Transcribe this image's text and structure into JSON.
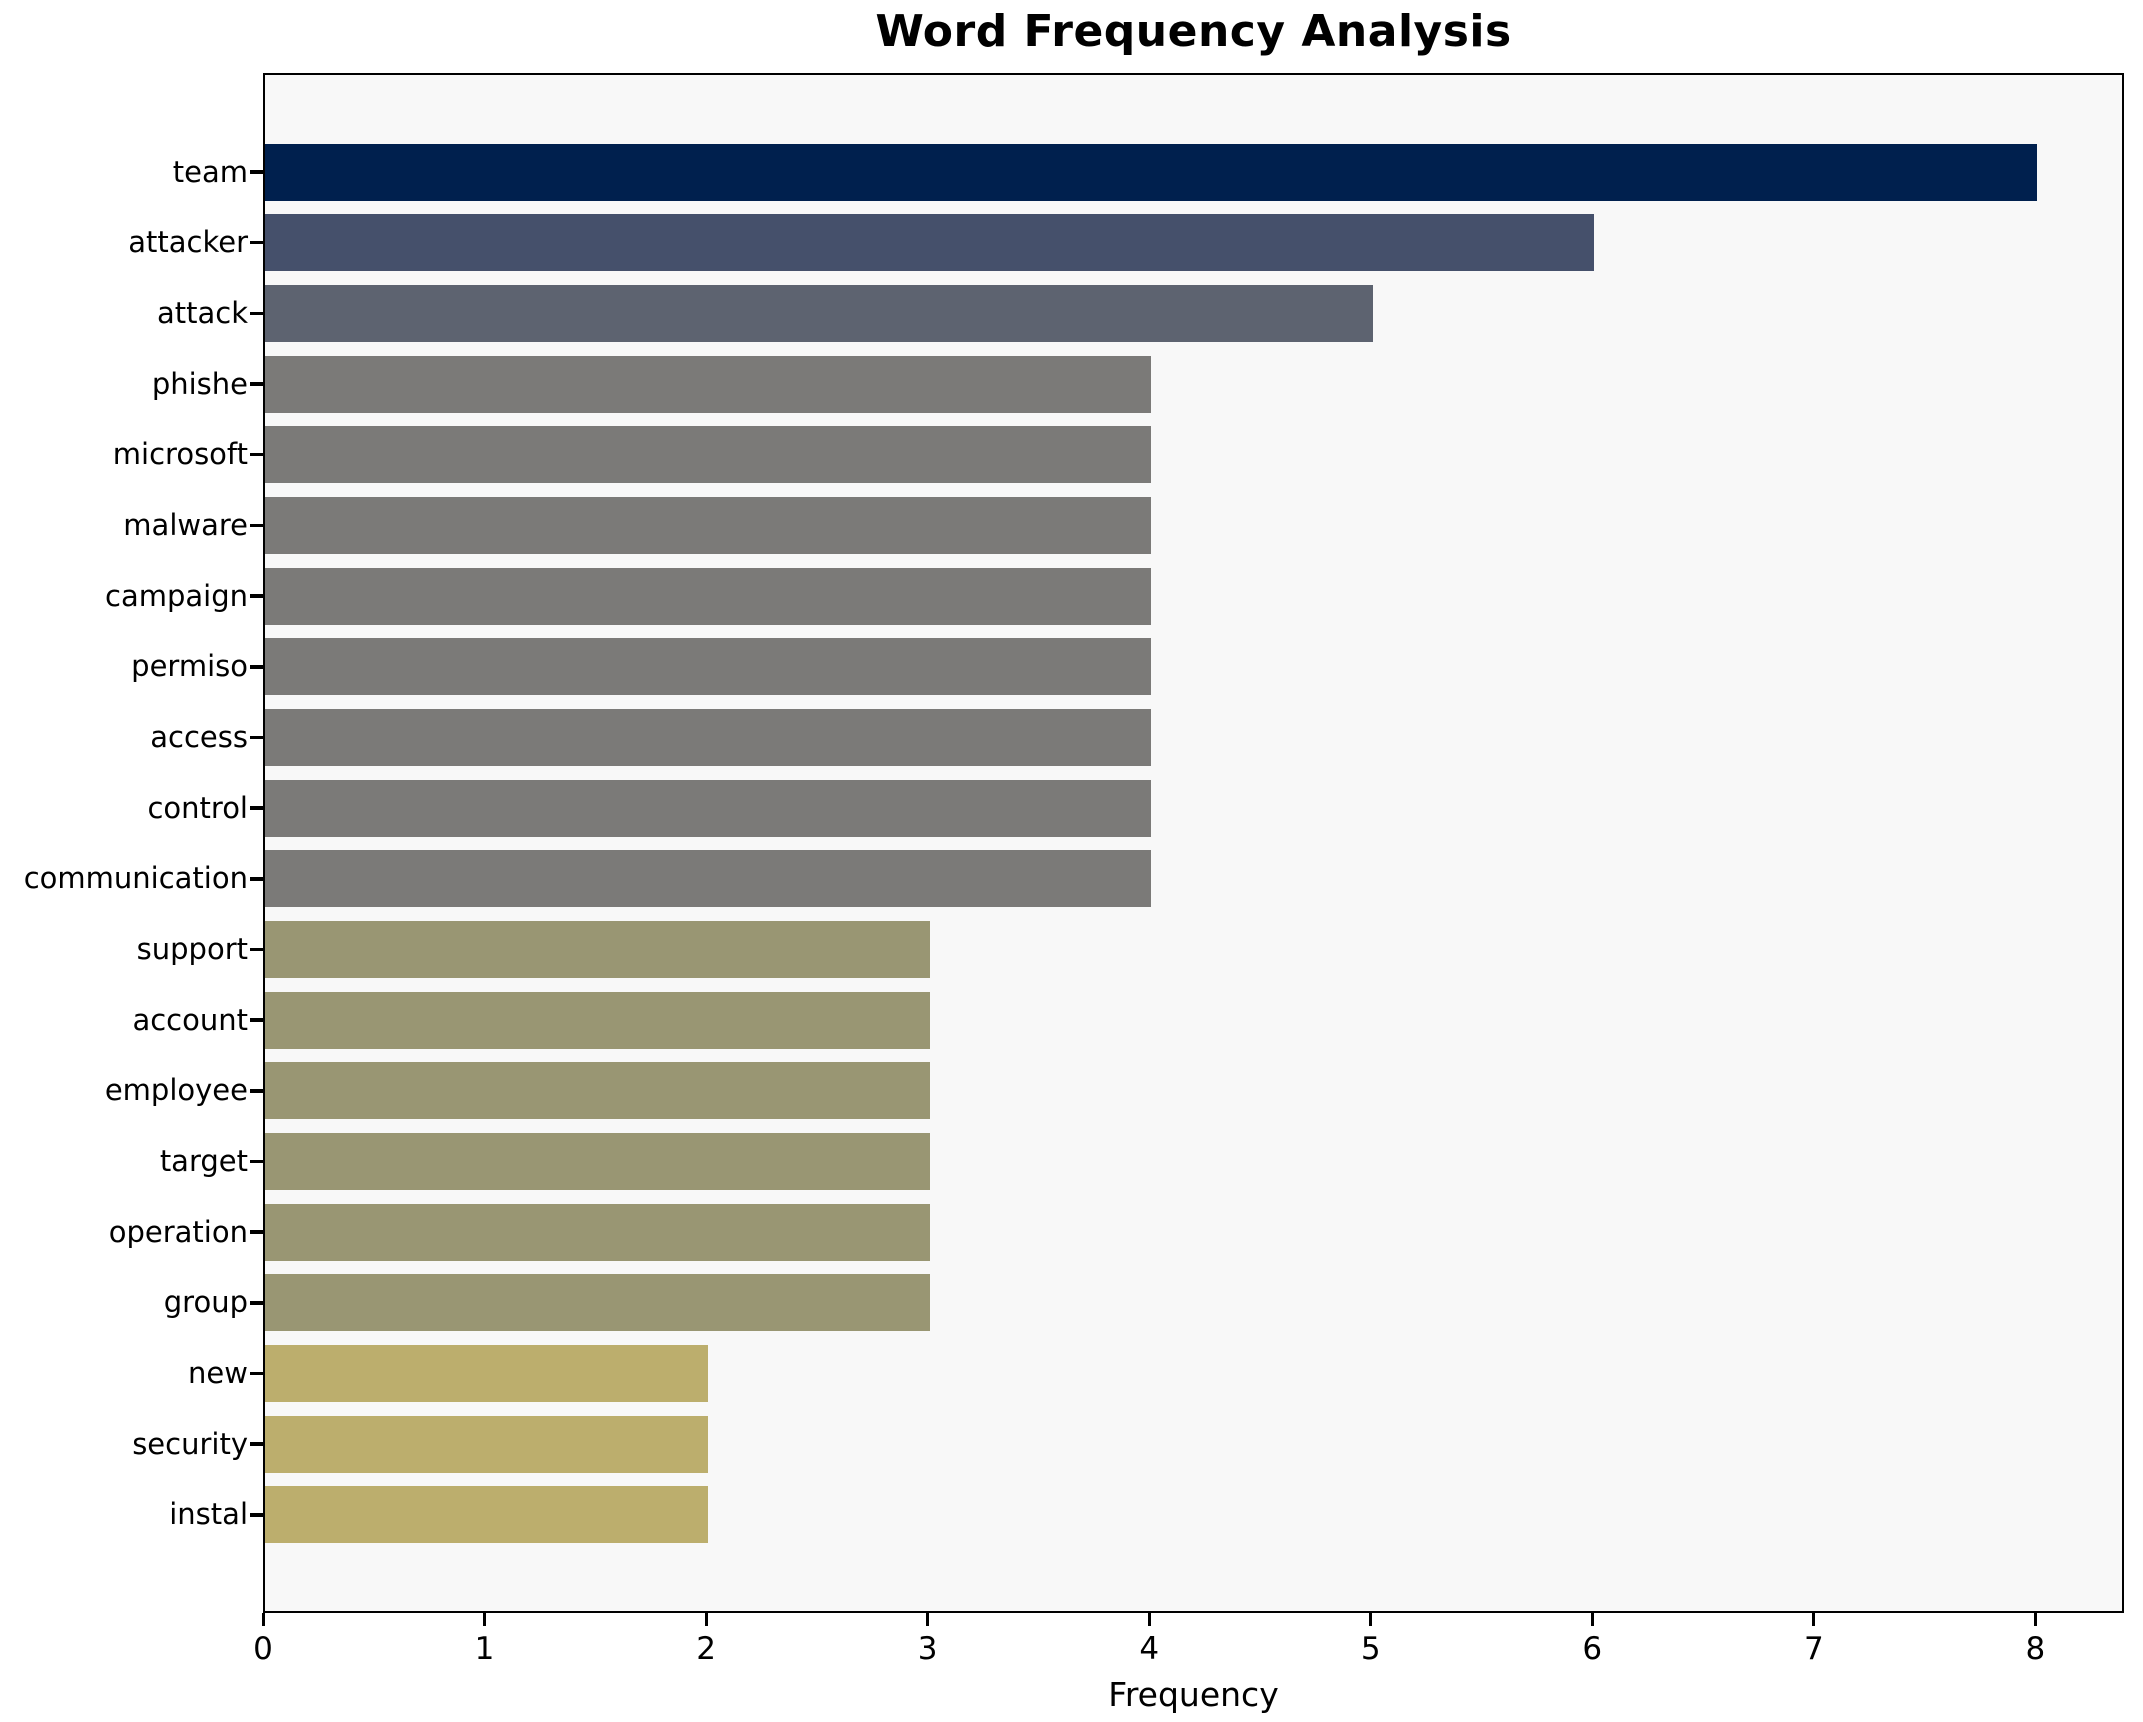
{
  "title": "Word Frequency Analysis",
  "x_axis": {
    "label": "Frequency",
    "ticks": [
      0,
      1,
      2,
      3,
      4,
      5,
      6,
      7,
      8
    ],
    "max": 8.4
  },
  "chart_data": {
    "type": "bar",
    "orientation": "horizontal",
    "title": "Word Frequency Analysis",
    "xlabel": "Frequency",
    "ylabel": "",
    "xlim": [
      0,
      8.4
    ],
    "grid": false,
    "legend": null,
    "plot_background": "#f8f8f8",
    "figure_background": "#ffffff",
    "categories": [
      "team",
      "attacker",
      "attack",
      "phishe",
      "microsoft",
      "malware",
      "campaign",
      "permiso",
      "access",
      "control",
      "communication",
      "support",
      "account",
      "employee",
      "target",
      "operation",
      "group",
      "new",
      "security",
      "instal"
    ],
    "values": [
      8,
      6,
      5,
      4,
      4,
      4,
      4,
      4,
      4,
      4,
      4,
      3,
      3,
      3,
      3,
      3,
      3,
      2,
      2,
      2
    ],
    "bar_colors": [
      "#00204e",
      "#45506b",
      "#5d6370",
      "#7b7a78",
      "#7b7a78",
      "#7b7a78",
      "#7b7a78",
      "#7b7a78",
      "#7b7a78",
      "#7b7a78",
      "#7b7a78",
      "#999673",
      "#999673",
      "#999673",
      "#999673",
      "#999673",
      "#999673",
      "#bcae6d",
      "#bcae6d",
      "#bcae6d"
    ]
  }
}
